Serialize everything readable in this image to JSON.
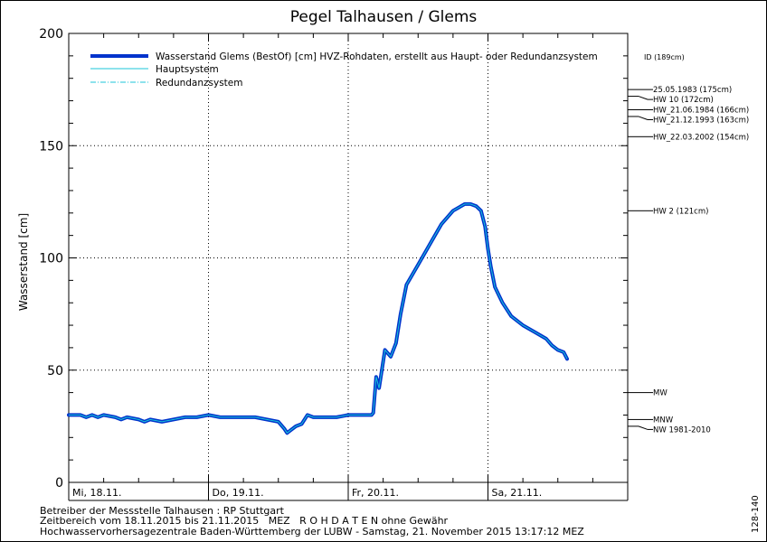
{
  "chart_data": {
    "type": "line",
    "title": "Pegel Talhausen / Glems",
    "ylabel": "Wasserstand [cm]",
    "xlabel": "",
    "ylim": [
      0,
      200
    ],
    "y_ticks": [
      "0",
      "50",
      "100",
      "150",
      "200"
    ],
    "y_tick_values": [
      0,
      50,
      100,
      150,
      200
    ],
    "x_range_hours": [
      0,
      96
    ],
    "x_tick_labels": [
      "Mi, 18.11.",
      "Do, 19.11.",
      "Fr, 20.11.",
      "Sa, 21.11."
    ],
    "x_tick_hours": [
      0,
      24,
      48,
      72
    ],
    "grid": true,
    "legend": "top-left",
    "series": [
      {
        "name": "Wasserstand Glems (BestOf) [cm] HVZ-Rohdaten, erstellt aus Haupt- oder Redundanzsystem",
        "name_suffix": "ID (189cm)",
        "color": "#0033cc",
        "style": "thick",
        "x_hours": [
          0,
          2,
          3,
          4,
          5,
          6,
          8,
          9,
          10,
          12,
          13,
          14,
          16,
          18,
          20,
          21,
          22,
          24,
          26,
          28,
          30,
          32,
          34,
          36,
          37,
          37.5,
          38,
          39,
          40,
          41,
          42,
          44,
          46,
          48,
          50,
          51,
          52,
          52.3,
          52.8,
          53.3,
          54.3,
          55.3,
          56.2,
          57,
          58,
          60,
          62,
          64,
          66,
          68,
          69,
          70,
          70.8,
          71.5,
          72,
          72.5,
          73.2,
          74.5,
          76,
          78,
          80,
          82,
          83,
          84,
          85,
          85.6
        ],
        "values": [
          30,
          30,
          29,
          30,
          29,
          30,
          29,
          28,
          29,
          28,
          27,
          28,
          27,
          28,
          29,
          29,
          29,
          30,
          29,
          29,
          29,
          29,
          28,
          27,
          24,
          22,
          23,
          25,
          26,
          30,
          29,
          29,
          29,
          30,
          30,
          30,
          30,
          31,
          47,
          42,
          59,
          56,
          62,
          75,
          88,
          97,
          106,
          115,
          121,
          124,
          124,
          123,
          121,
          114,
          104,
          96,
          87,
          80,
          74,
          70,
          67,
          64,
          61,
          59,
          58,
          55
        ]
      },
      {
        "name": "Hauptsystem",
        "color": "#1bc6d8",
        "style": "solid"
      },
      {
        "name": "Redundanzsystem",
        "color": "#1bc6d8",
        "style": "dashdot"
      }
    ],
    "markers": [
      {
        "label": "25.05.1983 (175cm)",
        "value": 175
      },
      {
        "label": "HW 10 (172cm)",
        "value": 172
      },
      {
        "label": "HW_21.06.1984 (166cm)",
        "value": 166
      },
      {
        "label": "HW_21.12.1993 (163cm)",
        "value": 163
      },
      {
        "label": "HW_22.03.2002 (154cm)",
        "value": 154
      },
      {
        "label": "HW 2 (121cm)",
        "value": 121
      },
      {
        "label": "MW",
        "value": 40
      },
      {
        "label": "MNW",
        "value": 28
      },
      {
        "label": "NW 1981-2010",
        "value": 25
      }
    ]
  },
  "footer": {
    "line1": "Betreiber der Messstelle Talhausen : RP Stuttgart",
    "line2": "Zeitbereich vom 18.11.2015 bis 21.11.2015   MEZ   R O H D A T E N ohne Gewähr",
    "line3": "Hochwasservorhersagezentrale Baden-Württemberg der LUBW - Samstag, 21. November 2015 13:17:12 MEZ",
    "side_code": "128-140"
  }
}
